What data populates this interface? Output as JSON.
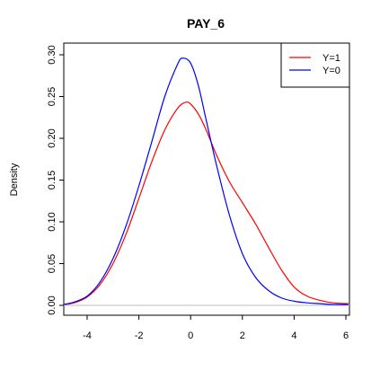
{
  "chart_data": {
    "type": "line",
    "title": "PAY_6",
    "xlabel": "",
    "ylabel": "Density",
    "xlim": [
      -5.0,
      6.1
    ],
    "ylim": [
      0.0,
      0.31
    ],
    "x_ticks": [
      -4,
      -2,
      0,
      2,
      4,
      6
    ],
    "x_tick_labels": [
      "-4",
      "-2",
      "0",
      "2",
      "4",
      "6"
    ],
    "y_ticks": [
      0.0,
      0.05,
      0.1,
      0.15,
      0.2,
      0.25,
      0.3
    ],
    "y_tick_labels": [
      "0.00",
      "0.05",
      "0.10",
      "0.15",
      "0.20",
      "0.25",
      "0.30"
    ],
    "baseline": 0,
    "baseline_color": "#bebebe",
    "grid": false,
    "legend_position": "top-right",
    "series": [
      {
        "name": "Y=1",
        "color": "#ff0000",
        "x": [
          -4.9,
          -4.5,
          -4.0,
          -3.5,
          -3.0,
          -2.5,
          -2.0,
          -1.5,
          -1.0,
          -0.5,
          -0.2,
          0.0,
          0.3,
          0.6,
          1.0,
          1.5,
          2.0,
          2.5,
          3.0,
          3.5,
          4.0,
          4.5,
          5.0,
          5.5,
          6.1
        ],
        "y": [
          0.001,
          0.003,
          0.01,
          0.025,
          0.05,
          0.085,
          0.128,
          0.172,
          0.21,
          0.236,
          0.243,
          0.241,
          0.229,
          0.21,
          0.18,
          0.148,
          0.123,
          0.098,
          0.07,
          0.043,
          0.022,
          0.011,
          0.006,
          0.003,
          0.002
        ]
      },
      {
        "name": "Y=0",
        "color": "#0000ff",
        "x": [
          -4.9,
          -4.5,
          -4.0,
          -3.5,
          -3.0,
          -2.5,
          -2.0,
          -1.5,
          -1.0,
          -0.5,
          -0.3,
          0.0,
          0.3,
          0.6,
          1.0,
          1.5,
          2.0,
          2.5,
          3.0,
          3.5,
          4.0,
          4.5,
          5.0,
          5.5,
          6.1
        ],
        "y": [
          0.001,
          0.004,
          0.011,
          0.028,
          0.056,
          0.095,
          0.143,
          0.196,
          0.25,
          0.289,
          0.296,
          0.29,
          0.263,
          0.222,
          0.168,
          0.108,
          0.062,
          0.034,
          0.018,
          0.009,
          0.005,
          0.003,
          0.002,
          0.001,
          0.001
        ]
      }
    ]
  }
}
